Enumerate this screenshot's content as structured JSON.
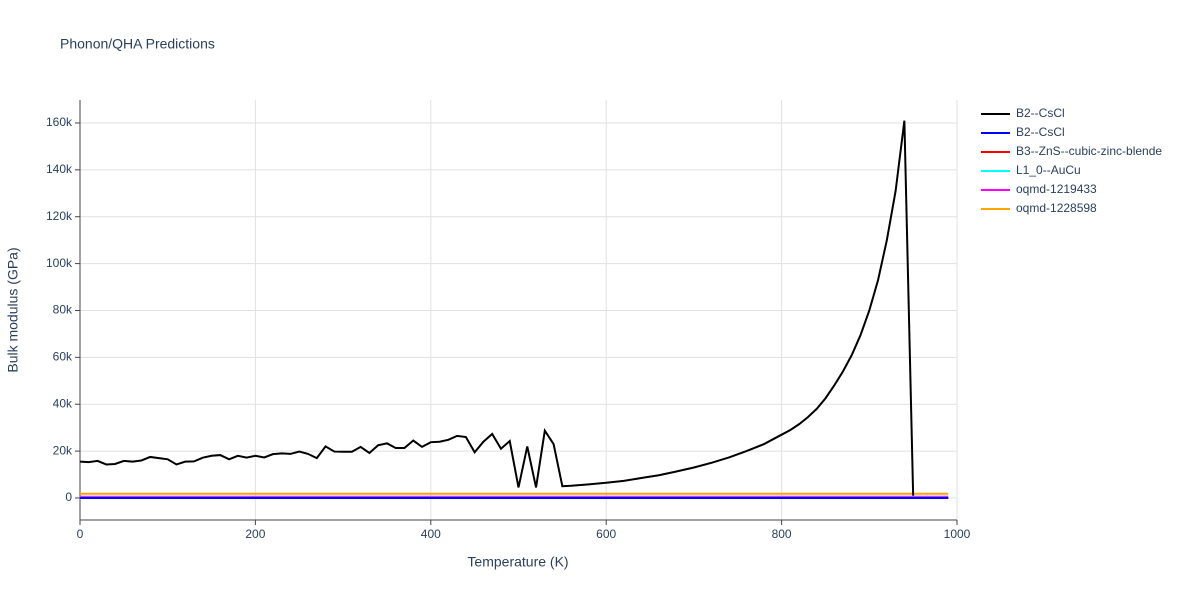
{
  "chart_data": {
    "type": "line",
    "title": "Phonon/QHA Predictions",
    "x_label": "Temperature (K)",
    "y_label": "Bulk modulus (GPa)",
    "xlim": [
      0,
      1000
    ],
    "ylim": [
      -9400,
      169800
    ],
    "xticks": [
      0,
      200,
      400,
      600,
      800,
      1000
    ],
    "yticks": [
      0,
      {
        "value": 20000,
        "label": "20k"
      },
      {
        "value": 40000,
        "label": "40k"
      },
      {
        "value": 60000,
        "label": "60k"
      },
      {
        "value": 80000,
        "label": "80k"
      },
      {
        "value": 100000,
        "label": "100k"
      },
      {
        "value": 120000,
        "label": "120k"
      },
      {
        "value": 140000,
        "label": "140k"
      },
      {
        "value": 160000,
        "label": "160k"
      }
    ],
    "grid": true,
    "series": [
      {
        "name": "B2--CsCl",
        "color": "#000000",
        "x": [
          0,
          10,
          20,
          30,
          40,
          50,
          60,
          70,
          80,
          90,
          100,
          110,
          120,
          130,
          140,
          150,
          160,
          170,
          180,
          190,
          200,
          210,
          220,
          230,
          240,
          250,
          260,
          270,
          280,
          290,
          300,
          310,
          320,
          330,
          340,
          350,
          360,
          370,
          380,
          390,
          400,
          410,
          420,
          430,
          440,
          450,
          460,
          470,
          480,
          490,
          500,
          510,
          520,
          530,
          540,
          550,
          560,
          580,
          600,
          620,
          640,
          660,
          680,
          700,
          720,
          740,
          760,
          780,
          800,
          810,
          820,
          830,
          840,
          850,
          860,
          870,
          880,
          890,
          900,
          910,
          920,
          930,
          940,
          950
        ],
        "values": [
          15500,
          15300,
          15800,
          14300,
          14500,
          15800,
          15500,
          16000,
          17500,
          17000,
          16500,
          14300,
          15500,
          15600,
          17200,
          18000,
          18300,
          16500,
          18000,
          17200,
          18000,
          17300,
          18700,
          19000,
          18800,
          19800,
          18800,
          17000,
          22000,
          19800,
          19700,
          19700,
          21800,
          19200,
          22500,
          23300,
          21300,
          21300,
          24500,
          21800,
          23800,
          24000,
          24800,
          26500,
          26000,
          19500,
          24000,
          27300,
          21000,
          24300,
          4500,
          22000,
          4500,
          28700,
          23000,
          5000,
          5200,
          5800,
          6500,
          7300,
          8500,
          9700,
          11300,
          13000,
          15000,
          17300,
          20000,
          23000,
          27000,
          29000,
          31500,
          34500,
          38000,
          42500,
          48000,
          54000,
          61000,
          69500,
          80000,
          93000,
          110000,
          131000,
          161000,
          1000
        ]
      },
      {
        "name": "B2--CsCl",
        "color": "#0000ff",
        "x": [
          0,
          990
        ],
        "values": [
          0,
          0
        ]
      },
      {
        "name": "B3--ZnS--cubic-zinc-blende",
        "color": "#ff0000",
        "x": [
          0,
          990
        ],
        "values": [
          0,
          0
        ]
      },
      {
        "name": "L1_0--AuCu",
        "color": "#00ffff",
        "x": [
          0,
          990
        ],
        "values": [
          100,
          100
        ]
      },
      {
        "name": "oqmd-1219433",
        "color": "#ff00ff",
        "x": [
          0,
          990
        ],
        "values": [
          500,
          500
        ]
      },
      {
        "name": "oqmd-1228598",
        "color": "#ffa500",
        "x": [
          0,
          990
        ],
        "values": [
          1800,
          1800
        ]
      }
    ]
  }
}
